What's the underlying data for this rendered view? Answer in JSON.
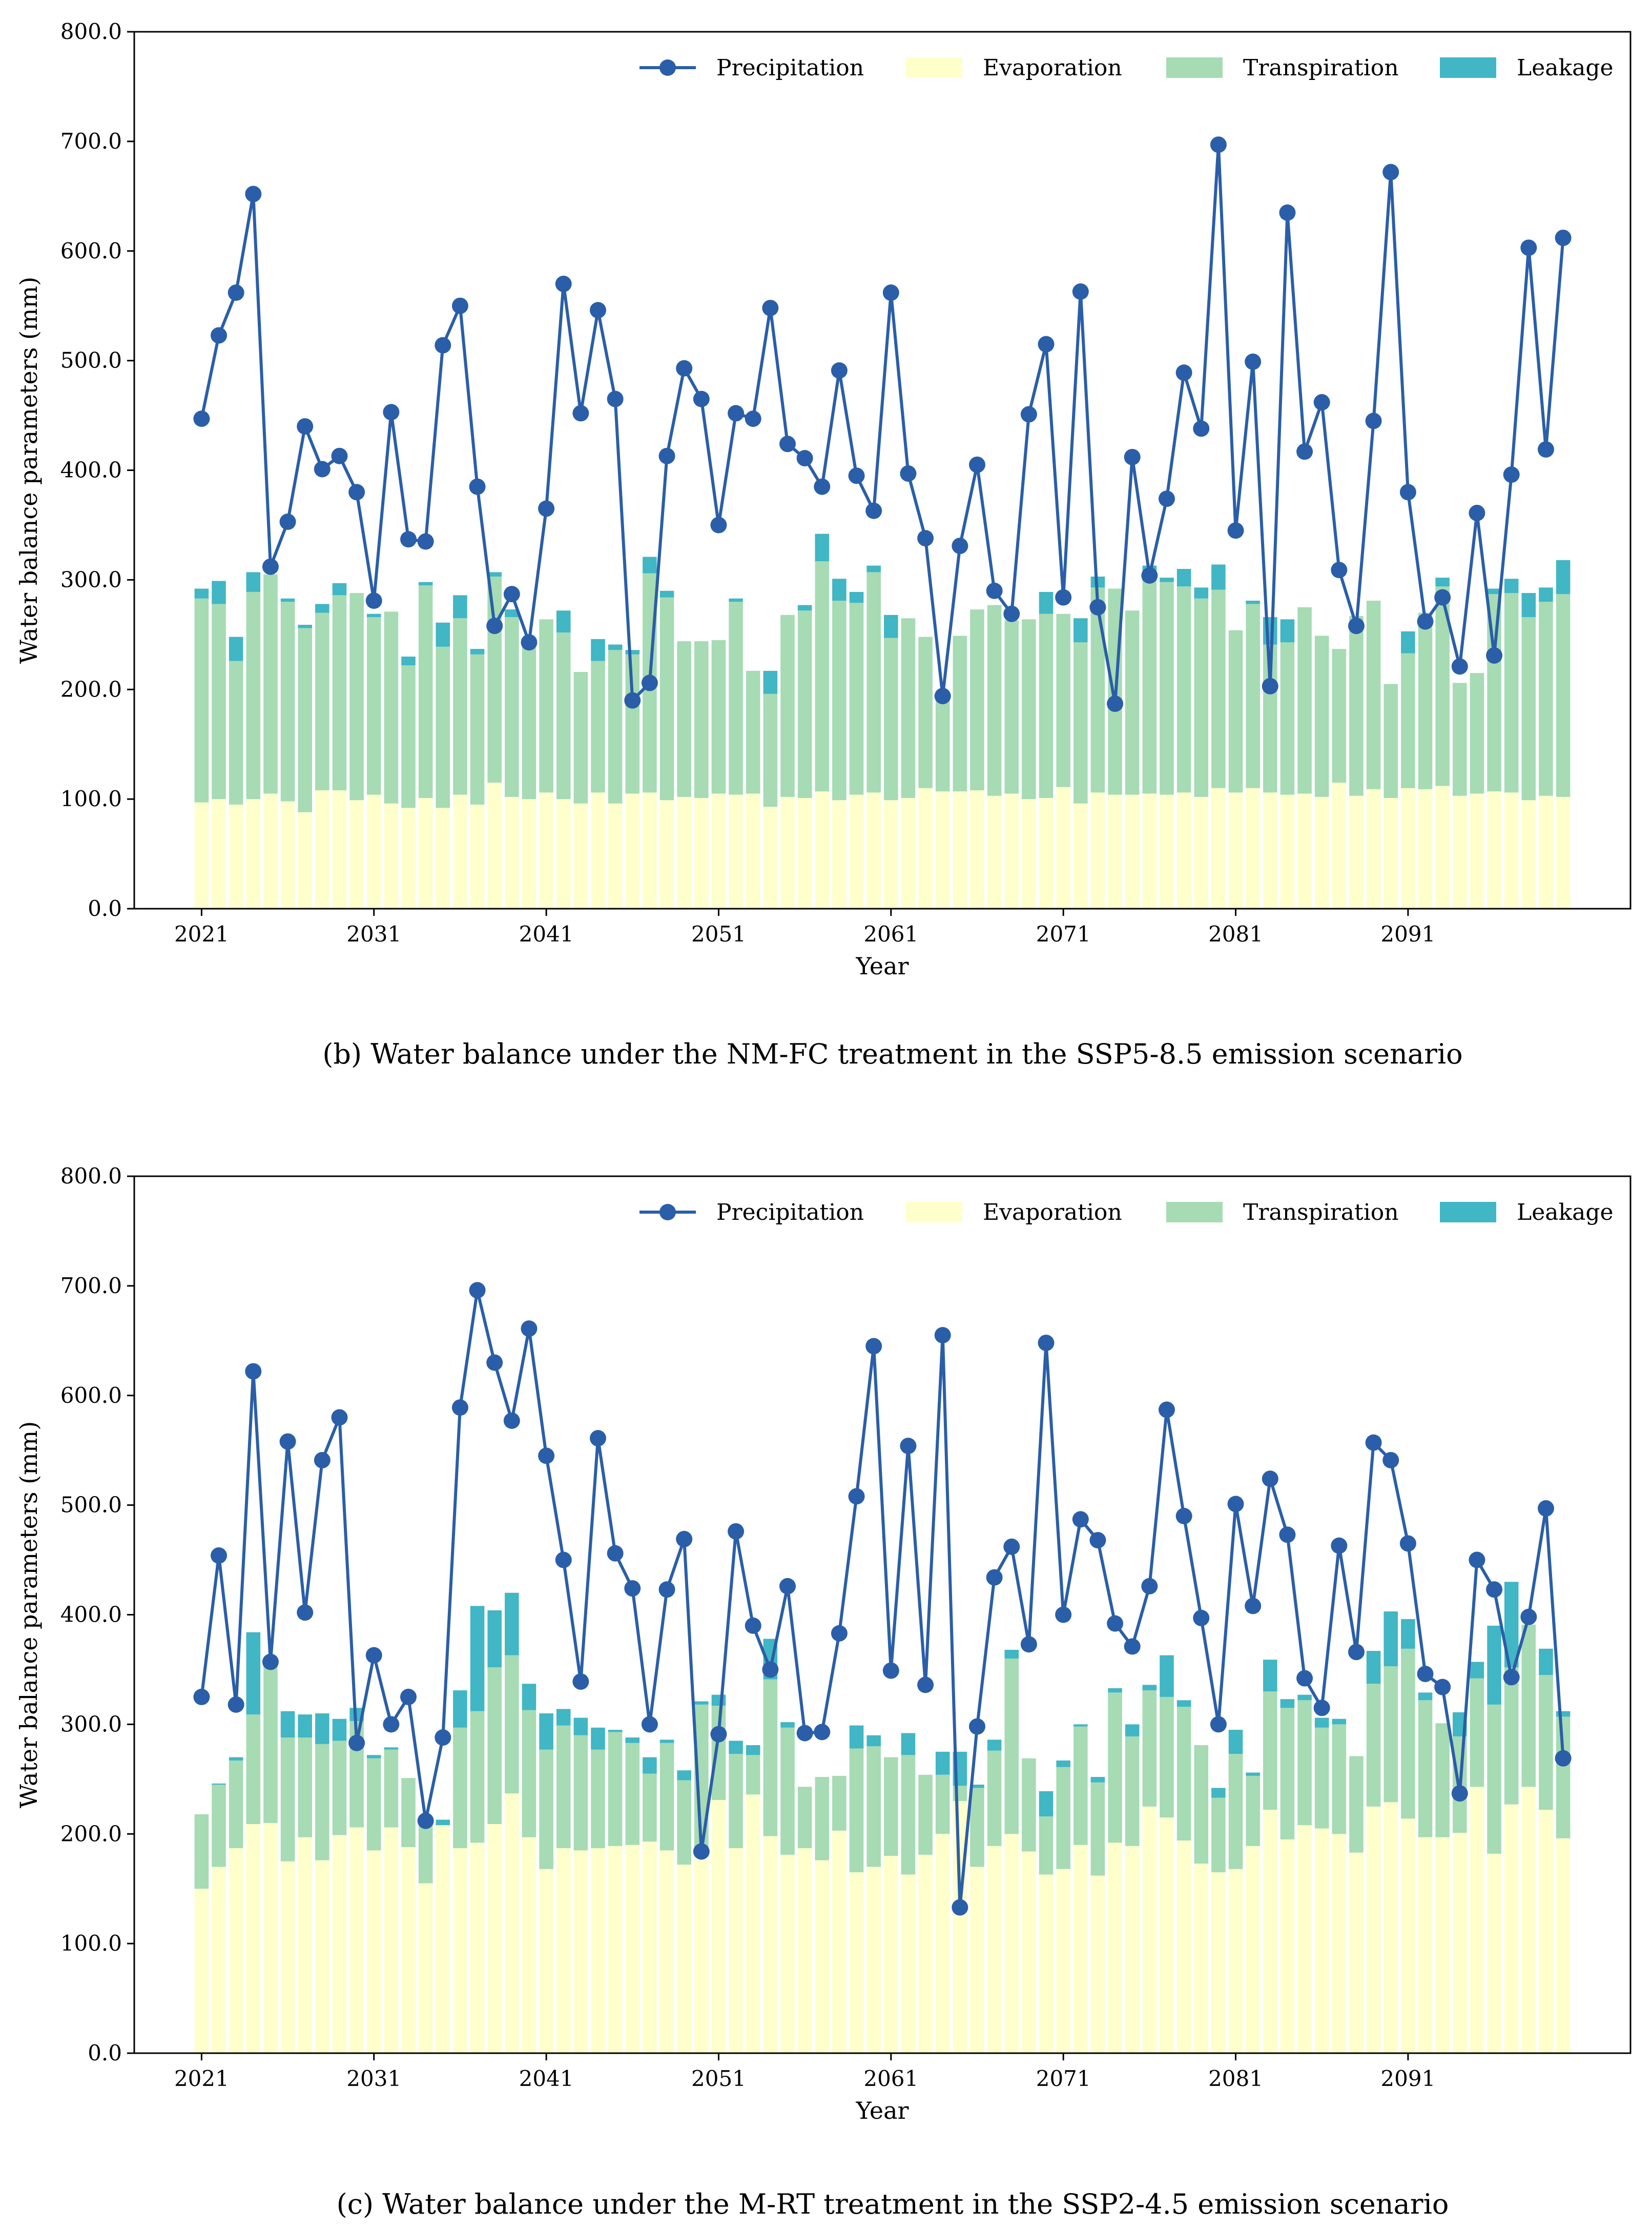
{
  "chart_data": [
    {
      "type": "bar",
      "caption": "(b) Water balance under the NM-FC treatment in the SSP5-8.5 emission scenario",
      "xlabel": "Year",
      "ylabel": "Water balance parameters (mm)",
      "ylim": [
        0,
        800
      ],
      "yticks": [
        "0.0",
        "100.0",
        "200.0",
        "300.0",
        "400.0",
        "500.0",
        "600.0",
        "700.0",
        "800.0"
      ],
      "xticks": [
        "2021",
        "2031",
        "2041",
        "2051",
        "2061",
        "2071",
        "2081",
        "2091"
      ],
      "legend_position": "top-right",
      "grid": false,
      "x": [
        2021,
        2022,
        2023,
        2024,
        2025,
        2026,
        2027,
        2028,
        2029,
        2030,
        2031,
        2032,
        2033,
        2034,
        2035,
        2036,
        2037,
        2038,
        2039,
        2040,
        2041,
        2042,
        2043,
        2044,
        2045,
        2046,
        2047,
        2048,
        2049,
        2050,
        2051,
        2052,
        2053,
        2054,
        2055,
        2056,
        2057,
        2058,
        2059,
        2060,
        2061,
        2062,
        2063,
        2064,
        2065,
        2066,
        2067,
        2068,
        2069,
        2070,
        2071,
        2072,
        2073,
        2074,
        2075,
        2076,
        2077,
        2078,
        2079,
        2080,
        2081,
        2082,
        2083,
        2084,
        2085,
        2086,
        2087,
        2088,
        2089,
        2090,
        2091,
        2092,
        2093,
        2094,
        2095,
        2096,
        2097,
        2098,
        2099,
        2100
      ],
      "series": [
        {
          "name": "Precipitation",
          "kind": "line",
          "color": "#2a5ea8",
          "values": [
            447,
            523,
            562,
            652,
            312,
            353,
            440,
            401,
            413,
            380,
            281,
            453,
            337,
            335,
            514,
            550,
            385,
            258,
            287,
            243,
            365,
            570,
            452,
            546,
            465,
            190,
            206,
            413,
            493,
            465,
            350,
            452,
            447,
            548,
            424,
            411,
            385,
            491,
            395,
            363,
            562,
            397,
            338,
            194,
            331,
            405,
            290,
            269,
            451,
            515,
            284,
            563,
            275,
            187,
            412,
            304,
            374,
            489,
            438,
            697,
            345,
            499,
            203,
            635,
            417,
            462,
            309,
            258,
            445,
            672,
            380,
            262,
            284,
            221,
            361,
            231,
            396,
            603,
            419,
            612
          ]
        },
        {
          "name": "Evaporation",
          "kind": "bar",
          "color": "#ffffcc",
          "values": [
            97,
            100,
            95,
            100,
            105,
            98,
            88,
            108,
            108,
            99,
            104,
            96,
            92,
            101,
            92,
            104,
            95,
            115,
            102,
            100,
            106,
            100,
            96,
            106,
            96,
            105,
            106,
            99,
            102,
            101,
            105,
            104,
            105,
            93,
            102,
            101,
            107,
            99,
            104,
            106,
            99,
            101,
            110,
            107,
            107,
            108,
            103,
            105,
            100,
            101,
            111,
            96,
            106,
            104,
            104,
            105,
            104,
            106,
            102,
            110,
            106,
            110,
            106,
            104,
            105,
            102,
            115,
            103,
            109,
            101,
            110,
            109,
            112,
            103,
            105,
            107,
            106,
            99,
            103,
            102
          ]
        },
        {
          "name": "Transpiration",
          "kind": "bar",
          "color": "#a6dbb4",
          "values": [
            186,
            178,
            131,
            189,
            200,
            182,
            168,
            162,
            178,
            189,
            162,
            175,
            130,
            194,
            147,
            161,
            137,
            188,
            164,
            140,
            158,
            152,
            120,
            120,
            140,
            127,
            200,
            185,
            142,
            143,
            140,
            176,
            112,
            103,
            166,
            171,
            210,
            182,
            175,
            201,
            148,
            164,
            138,
            83,
            142,
            165,
            174,
            158,
            164,
            168,
            158,
            147,
            187,
            188,
            168,
            194,
            194,
            188,
            181,
            181,
            148,
            168,
            135,
            139,
            170,
            147,
            122,
            164,
            172,
            104,
            123,
            161,
            182,
            103,
            110,
            180,
            182,
            167,
            177,
            185
          ]
        },
        {
          "name": "Leakage",
          "kind": "bar",
          "color": "#41b6c4",
          "values": [
            9,
            21,
            22,
            18,
            0,
            3,
            3,
            8,
            11,
            0,
            3,
            0,
            8,
            3,
            22,
            21,
            5,
            4,
            7,
            4,
            0,
            20,
            0,
            20,
            5,
            4,
            15,
            6,
            0,
            0,
            0,
            3,
            0,
            21,
            0,
            5,
            25,
            20,
            10,
            6,
            21,
            0,
            0,
            0,
            0,
            0,
            0,
            0,
            0,
            20,
            0,
            22,
            10,
            0,
            0,
            14,
            4,
            16,
            10,
            23,
            0,
            3,
            25,
            21,
            0,
            0,
            0,
            0,
            0,
            0,
            20,
            0,
            8,
            0,
            0,
            5,
            13,
            22,
            13,
            31
          ]
        }
      ]
    },
    {
      "type": "bar",
      "caption": "(c) Water balance under the M-RT treatment in the SSP2-4.5 emission scenario",
      "xlabel": "Year",
      "ylabel": "Water balance parameters (mm)",
      "ylim": [
        0,
        800
      ],
      "yticks": [
        "0.0",
        "100.0",
        "200.0",
        "300.0",
        "400.0",
        "500.0",
        "600.0",
        "700.0",
        "800.0"
      ],
      "xticks": [
        "2021",
        "2031",
        "2041",
        "2051",
        "2061",
        "2071",
        "2081",
        "2091"
      ],
      "legend_position": "top-right",
      "grid": false,
      "x": [
        2021,
        2022,
        2023,
        2024,
        2025,
        2026,
        2027,
        2028,
        2029,
        2030,
        2031,
        2032,
        2033,
        2034,
        2035,
        2036,
        2037,
        2038,
        2039,
        2040,
        2041,
        2042,
        2043,
        2044,
        2045,
        2046,
        2047,
        2048,
        2049,
        2050,
        2051,
        2052,
        2053,
        2054,
        2055,
        2056,
        2057,
        2058,
        2059,
        2060,
        2061,
        2062,
        2063,
        2064,
        2065,
        2066,
        2067,
        2068,
        2069,
        2070,
        2071,
        2072,
        2073,
        2074,
        2075,
        2076,
        2077,
        2078,
        2079,
        2080,
        2081,
        2082,
        2083,
        2084,
        2085,
        2086,
        2087,
        2088,
        2089,
        2090,
        2091,
        2092,
        2093,
        2094,
        2095,
        2096,
        2097,
        2098,
        2099,
        2100
      ],
      "series": [
        {
          "name": "Precipitation",
          "kind": "line",
          "color": "#2a5ea8",
          "values": [
            325,
            454,
            318,
            622,
            357,
            558,
            402,
            541,
            580,
            283,
            363,
            300,
            325,
            212,
            288,
            589,
            696,
            630,
            577,
            661,
            545,
            450,
            339,
            561,
            456,
            424,
            300,
            423,
            469,
            184,
            291,
            476,
            390,
            350,
            426,
            292,
            293,
            383,
            508,
            645,
            349,
            554,
            336,
            655,
            133,
            298,
            434,
            462,
            373,
            648,
            400,
            487,
            468,
            392,
            371,
            426,
            587,
            490,
            397,
            300,
            501,
            408,
            524,
            473,
            342,
            315,
            463,
            366,
            557,
            541,
            465,
            346,
            334,
            237,
            450,
            423,
            343,
            398,
            497,
            269
          ]
        },
        {
          "name": "Evaporation",
          "kind": "bar",
          "color": "#ffffcc",
          "values": [
            150,
            170,
            187,
            209,
            210,
            175,
            197,
            176,
            199,
            206,
            185,
            206,
            188,
            155,
            208,
            187,
            192,
            209,
            237,
            197,
            168,
            187,
            185,
            187,
            189,
            190,
            193,
            185,
            172,
            180,
            231,
            187,
            236,
            198,
            181,
            187,
            176,
            203,
            165,
            170,
            180,
            163,
            181,
            200,
            230,
            170,
            189,
            200,
            184,
            163,
            168,
            190,
            162,
            192,
            189,
            225,
            215,
            194,
            173,
            165,
            168,
            189,
            222,
            195,
            208,
            205,
            200,
            183,
            225,
            229,
            214,
            197,
            197,
            201,
            243,
            182,
            227,
            243,
            222,
            196
          ]
        },
        {
          "name": "Transpiration",
          "kind": "bar",
          "color": "#a6dbb4",
          "values": [
            68,
            75,
            80,
            100,
            150,
            113,
            91,
            106,
            86,
            97,
            84,
            71,
            63,
            56,
            0,
            110,
            120,
            143,
            126,
            116,
            109,
            112,
            105,
            90,
            104,
            93,
            62,
            98,
            77,
            138,
            86,
            86,
            36,
            143,
            116,
            56,
            76,
            50,
            113,
            110,
            90,
            109,
            73,
            54,
            14,
            72,
            87,
            160,
            85,
            53,
            93,
            108,
            85,
            137,
            100,
            106,
            110,
            122,
            108,
            68,
            105,
            64,
            108,
            120,
            114,
            92,
            100,
            88,
            112,
            124,
            155,
            125,
            104,
            88,
            99,
            136,
            125,
            148,
            123,
            111
          ]
        },
        {
          "name": "Leakage",
          "kind": "bar",
          "color": "#41b6c4",
          "values": [
            0,
            1,
            3,
            75,
            0,
            24,
            21,
            28,
            20,
            12,
            3,
            2,
            0,
            2,
            5,
            34,
            96,
            52,
            57,
            24,
            33,
            15,
            16,
            20,
            2,
            5,
            15,
            3,
            9,
            3,
            10,
            12,
            9,
            37,
            5,
            0,
            0,
            0,
            21,
            10,
            0,
            20,
            0,
            21,
            31,
            3,
            10,
            8,
            0,
            23,
            6,
            2,
            5,
            4,
            11,
            5,
            38,
            6,
            0,
            9,
            22,
            3,
            29,
            8,
            5,
            9,
            5,
            0,
            30,
            50,
            27,
            7,
            0,
            22,
            15,
            72,
            78,
            0,
            24,
            5
          ]
        }
      ]
    }
  ]
}
